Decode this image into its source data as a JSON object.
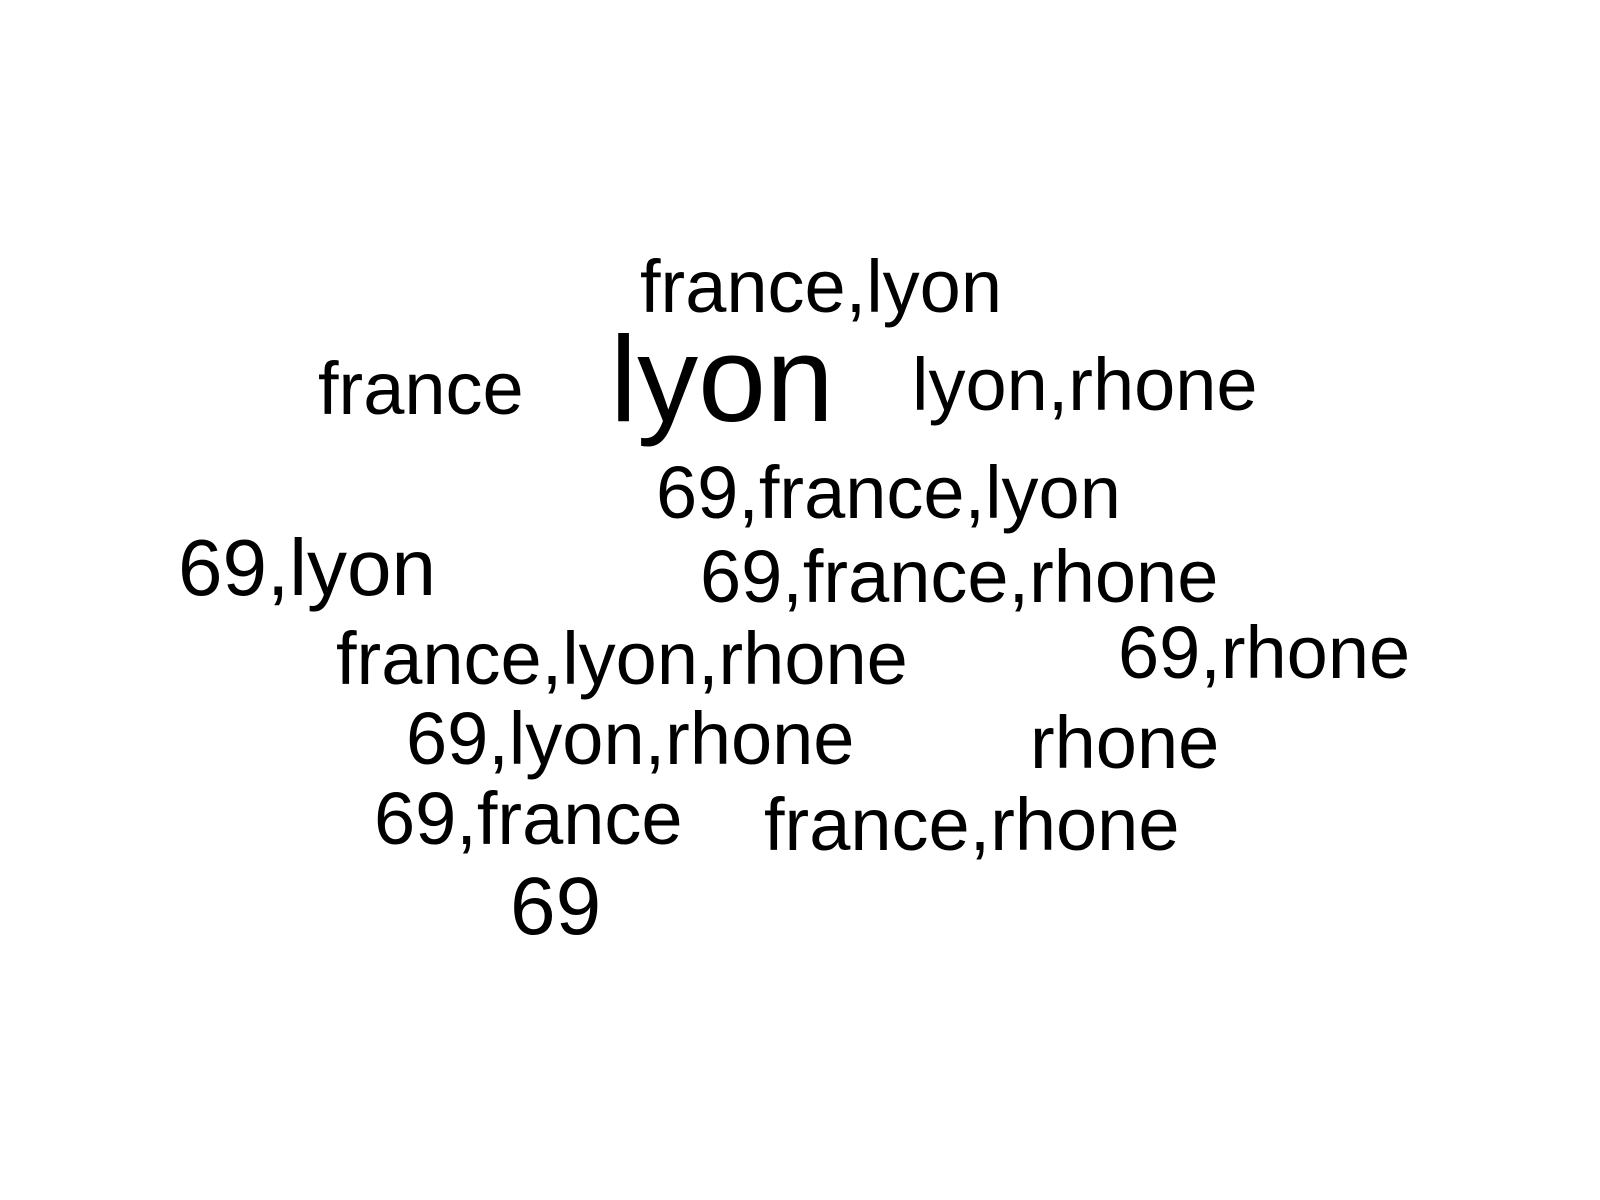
{
  "words": [
    "france,lyon",
    "france",
    "lyon",
    "lyon,rhone",
    "69,france,lyon",
    "69,lyon",
    "69,france,rhone",
    "france,lyon,rhone",
    "69,rhone",
    "69,lyon,rhone",
    "rhone",
    "69,france",
    "france,rhone",
    "69"
  ],
  "colors": {
    "background": "#ffffff",
    "text": "#000000"
  }
}
